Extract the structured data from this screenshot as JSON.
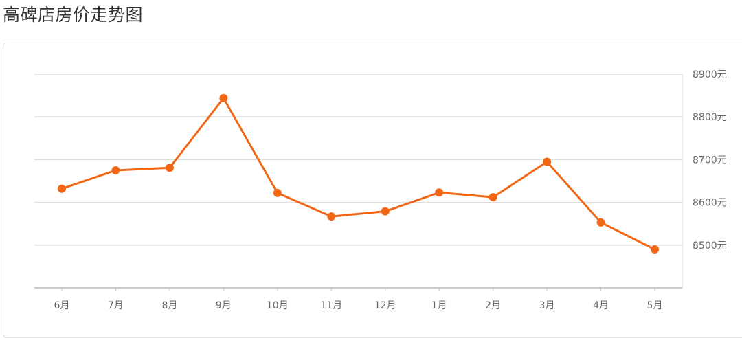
{
  "title": "高碑店房价走势图",
  "chart_data": {
    "type": "line",
    "title": "高碑店房价走势图",
    "categories": [
      "6月",
      "7月",
      "8月",
      "9月",
      "10月",
      "11月",
      "12月",
      "1月",
      "2月",
      "3月",
      "4月",
      "5月"
    ],
    "series": [
      {
        "values": [
          8632,
          8675,
          8681,
          8844,
          8622,
          8567,
          8579,
          8623,
          8612,
          8695,
          8553,
          8490
        ]
      }
    ],
    "yticks": [
      8500,
      8600,
      8700,
      8800,
      8900
    ],
    "ytick_labels": [
      "8500元",
      "8600元",
      "8700元",
      "8800元",
      "8900元"
    ],
    "ylim": [
      8400,
      8900
    ],
    "y_axis_position": "right",
    "grid": true,
    "color": "#f26716"
  }
}
